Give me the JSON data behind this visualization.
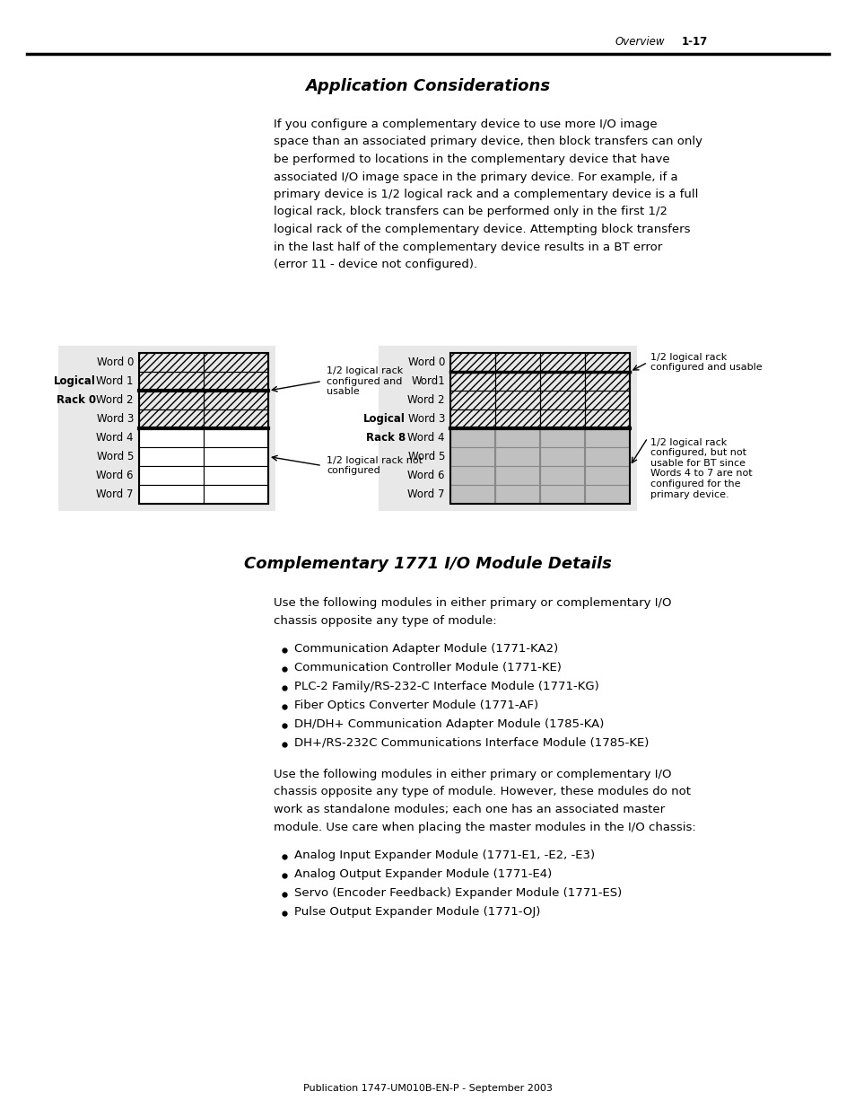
{
  "page_header_left": "Overview",
  "page_header_right": "1-17",
  "title1": "Application Considerations",
  "body_text1": "If you configure a complementary device to use more I/O image\nspace than an associated primary device, then block transfers can only\nbe performed to locations in the complementary device that have\nassociated I/O image space in the primary device. For example, if a\nprimary device is 1/2 logical rack and a complementary device is a full\nlogical rack, block transfers can be performed only in the first 1/2\nlogical rack of the complementary device. Attempting block transfers\nin the last half of the complementary device results in a BT error\n(error 11 - device not configured).",
  "left_rack_label1": "Logical",
  "left_rack_label2": "Rack 0",
  "left_rack_words": [
    "Word 0",
    "Word 1",
    "Word 2",
    "Word 3",
    "Word 4",
    "Word 5",
    "Word 6",
    "Word 7"
  ],
  "left_annot1": "1/2 logical rack\nconfigured and\nusable",
  "left_annot2": "1/2 logical rack not\nconfigured",
  "right_rack_label1": "Logical",
  "right_rack_label2": "Rack 8",
  "right_rack_words": [
    "Word 0",
    "Word1",
    "Word 2",
    "Word 3",
    "Word 4",
    "Word 5",
    "Word 6",
    "Word 7"
  ],
  "right_annot1": "1/2 logical rack\nconfigured and usable",
  "right_annot2": "1/2 logical rack\nconfigured, but not\nusable for BT since\nWords 4 to 7 are not\nconfigured for the\nprimary device.",
  "title2": "Complementary 1771 I/O Module Details",
  "body_text2": "Use the following modules in either primary or complementary I/O\nchassis opposite any type of module:",
  "bullet_list1": [
    "Communication Adapter Module (1771-KA2)",
    "Communication Controller Module (1771-KE)",
    "PLC-2 Family/RS-232-C Interface Module (1771-KG)",
    "Fiber Optics Converter Module (1771-AF)",
    "DH/DH+ Communication Adapter Module (1785-KA)",
    "DH+/RS-232C Communications Interface Module (1785-KE)"
  ],
  "body_text3": "Use the following modules in either primary or complementary I/O\nchassis opposite any type of module. However, these modules do not\nwork as standalone modules; each one has an associated master\nmodule. Use care when placing the master modules in the I/O chassis:",
  "bullet_list2": [
    "Analog Input Expander Module (1771-E1, -E2, -E3)",
    "Analog Output Expander Module (1771-E4)",
    "Servo (Encoder Feedback) Expander Module (1771-ES)",
    "Pulse Output Expander Module (1771-OJ)"
  ],
  "footer_text": "Publication 1747-UM010B-EN-P - September 2003",
  "bg_color": "#ffffff"
}
